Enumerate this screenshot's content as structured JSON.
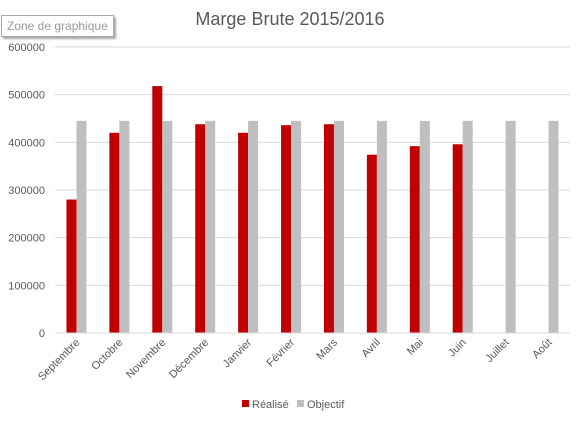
{
  "tooltip": {
    "label": "Zone de graphique"
  },
  "colors": {
    "realise": "#c00000",
    "objectif": "#bfbfbf",
    "grid": "#d9d9d9",
    "text": "#595959"
  },
  "chart_data": {
    "type": "bar",
    "title": "Marge Brute 2015/2016",
    "xlabel": "",
    "ylabel": "",
    "ylim": [
      0,
      600000
    ],
    "yticks": [
      0,
      100000,
      200000,
      300000,
      400000,
      500000,
      600000
    ],
    "grid": true,
    "legend_position": "bottom",
    "categories": [
      "Septembre",
      "Octobre",
      "Novembre",
      "Décembre",
      "Janvier",
      "Février",
      "Mars",
      "Avril",
      "Mai",
      "Juin",
      "Juillet",
      "Août"
    ],
    "series": [
      {
        "name": "Réalisé",
        "color": "#c00000",
        "values": [
          280000,
          420000,
          518000,
          438000,
          420000,
          436000,
          438000,
          374000,
          392000,
          396000,
          null,
          null
        ]
      },
      {
        "name": "Objectif",
        "color": "#bfbfbf",
        "values": [
          445000,
          445000,
          445000,
          445000,
          445000,
          445000,
          445000,
          445000,
          445000,
          445000,
          445000,
          445000
        ]
      }
    ]
  }
}
